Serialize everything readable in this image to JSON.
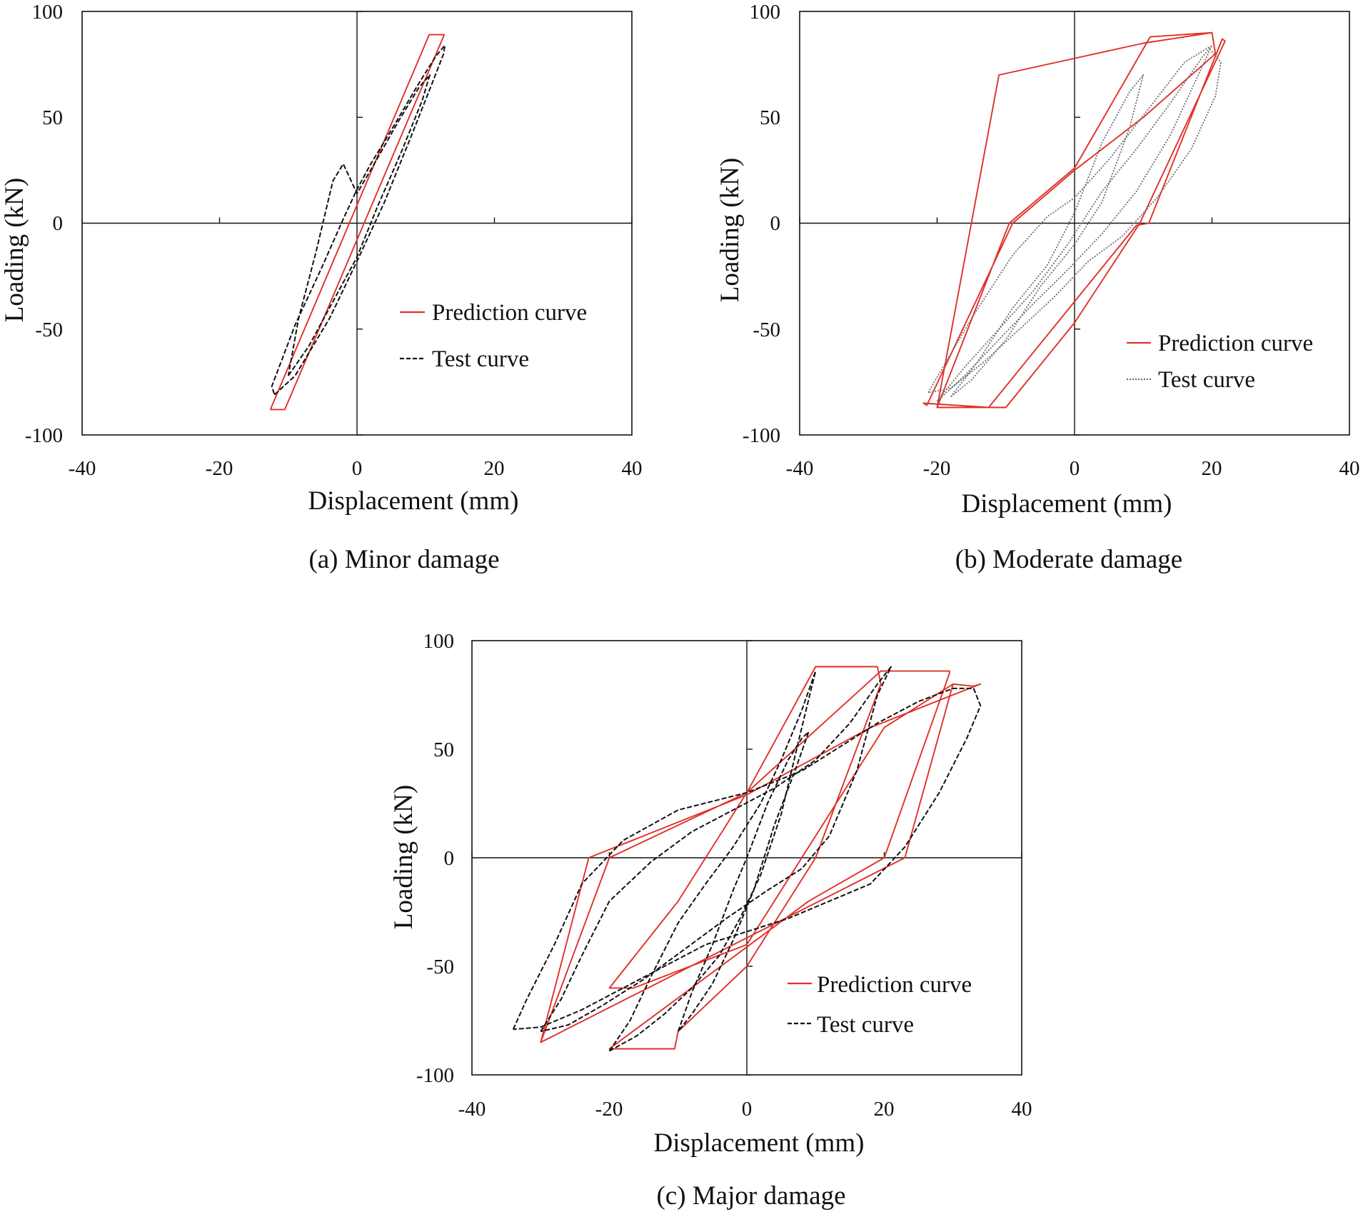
{
  "figure": {
    "colors": {
      "prediction": "#e0302a",
      "test": "#111111",
      "test_grey": "#6e6e6e",
      "axis": "#111111"
    }
  },
  "chart_data": [
    {
      "type": "line",
      "id": "a",
      "caption": "(a) Minor damage",
      "xlabel": "Displacement (mm)",
      "ylabel": "Loading (kN)",
      "xlim": [
        -40,
        40
      ],
      "ylim": [
        -100,
        100
      ],
      "xticks": [
        "-40",
        "-20",
        "0",
        "20",
        "40"
      ],
      "yticks": [
        "100",
        "50",
        "0",
        "-50",
        "-100"
      ],
      "legend": {
        "placement": "lower-right",
        "entries": [
          "Prediction curve",
          "Test curve"
        ]
      },
      "series": [
        {
          "name": "Prediction curve",
          "style": "solid-red",
          "x": [
            -12.6,
            -10.5,
            12.7,
            10.5,
            -12.6
          ],
          "y": [
            -88,
            -88,
            89,
            89,
            -88
          ]
        },
        {
          "name": "Test curve",
          "style": "dashed-black",
          "x": [
            -12.0,
            -9.0,
            -4.0,
            0.0,
            4.0,
            8.0,
            10.8,
            12.6,
            12.8,
            11.5,
            9.0,
            5.0,
            2.0,
            0.0,
            -2.0,
            -5.0,
            -9.0,
            -12.4,
            -12.0
          ],
          "y": [
            -81,
            -72,
            -45,
            -18,
            10,
            42,
            65,
            80,
            84,
            79,
            66,
            44,
            28,
            16,
            2,
            -20,
            -48,
            -77,
            -81
          ]
        },
        {
          "name": "Test curve (inner loop)",
          "style": "dashed-black",
          "x": [
            -10.0,
            -7.0,
            -3.0,
            0.0,
            3.0,
            6.5,
            9.5,
            10.6,
            9.0,
            6.0,
            2.5,
            0.0,
            -2.0,
            -3.5,
            -6.0,
            -8.5,
            -10.0
          ],
          "y": [
            -72,
            -58,
            -34,
            -16,
            8,
            34,
            58,
            70,
            64,
            48,
            28,
            14,
            28,
            20,
            -14,
            -45,
            -72
          ]
        }
      ]
    },
    {
      "type": "line",
      "id": "b",
      "caption": "(b) Moderate damage",
      "xlabel": "Displacement (mm)",
      "ylabel": "Loading (kN)",
      "xlim": [
        -40,
        40
      ],
      "ylim": [
        -100,
        100
      ],
      "xticks": [
        "-40",
        "-20",
        "0",
        "20",
        "40"
      ],
      "yticks": [
        "100",
        "50",
        "0",
        "-50",
        "-100"
      ],
      "legend": {
        "placement": "lower-right",
        "entries": [
          "Prediction curve",
          "Test curve"
        ]
      },
      "series": [
        {
          "name": "Prediction curve",
          "style": "solid-red",
          "x": [
            -20.0,
            -9.5,
            0.0,
            11.0,
            20.0,
            10.0,
            -11.0,
            -20.0,
            -10.0,
            0.0,
            9.5,
            21.9,
            21.5,
            10.8,
            9.0,
            -12.5,
            -22.0,
            -21.5,
            -9.0,
            0.0,
            10.0,
            20.5,
            20.0
          ],
          "y": [
            -87,
            0,
            26,
            88,
            90,
            85,
            70,
            -87,
            -87,
            -47,
            0,
            86,
            87,
            0,
            -1,
            -87,
            -85,
            -86,
            0,
            25,
            50,
            80,
            90
          ]
        },
        {
          "name": "Test curve (outer)",
          "style": "dotted-grey",
          "x": [
            -21.3,
            -19.5,
            -15.0,
            -9.0,
            -4.0,
            0.0,
            5.0,
            11.0,
            16.0,
            19.5,
            21.3,
            20.5,
            17.0,
            12.0,
            7.0,
            2.0,
            -3.0,
            -8.0,
            -13.0,
            -18.0,
            -21.3
          ],
          "y": [
            -80,
            -70,
            -45,
            -15,
            3,
            12,
            30,
            55,
            76,
            83,
            76,
            60,
            35,
            12,
            -6,
            -18,
            -35,
            -50,
            -65,
            -78,
            -80
          ]
        },
        {
          "name": "Test curve (inner)",
          "style": "dotted-grey",
          "x": [
            -18.0,
            -14.0,
            -9.0,
            -4.0,
            0.0,
            4.0,
            8.0,
            10.0,
            8.0,
            4.0,
            0.0,
            -5.0,
            -10.0,
            -15.0,
            -18.0
          ],
          "y": [
            -82,
            -65,
            -40,
            -20,
            5,
            38,
            62,
            70,
            45,
            10,
            -10,
            -30,
            -55,
            -74,
            -82
          ]
        },
        {
          "name": "Test curve (mid)",
          "style": "dotted-grey",
          "x": [
            -20.0,
            -16.0,
            -11.0,
            -6.0,
            -1.0,
            4.0,
            9.0,
            14.0,
            18.5,
            20.0,
            18.0,
            14.0,
            9.0,
            4.0,
            -1.0,
            -6.0,
            -11.0,
            -16.0,
            -20.0
          ],
          "y": [
            -84,
            -68,
            -50,
            -32,
            -10,
            15,
            35,
            57,
            78,
            84,
            70,
            42,
            15,
            -5,
            -22,
            -38,
            -55,
            -72,
            -84
          ]
        }
      ]
    },
    {
      "type": "line",
      "id": "c",
      "caption": "(c) Major damage",
      "xlabel": "Displacement (mm)",
      "ylabel": "Loading (kN)",
      "xlim": [
        -40,
        40
      ],
      "ylim": [
        -100,
        100
      ],
      "xticks": [
        "-40",
        "-20",
        "0",
        "20",
        "40"
      ],
      "yticks": [
        "100",
        "50",
        "0",
        "-50",
        "-100"
      ],
      "legend": {
        "placement": "lower-right",
        "entries": [
          "Prediction curve",
          "Test curve"
        ]
      },
      "series": [
        {
          "name": "Prediction curve",
          "style": "solid-red",
          "x": [
            -30.0,
            -23.0,
            0.0,
            18.0,
            34.0,
            33.0,
            30.0,
            23.0,
            -30.0,
            -30.0,
            -20.0,
            0.0,
            19.5,
            29.5,
            29.5,
            20.0,
            9.0,
            -20.0,
            -20.0,
            -10.5,
            -10.0,
            0.0,
            10.0,
            19.5,
            19.0,
            10.0,
            0.0,
            -10.0,
            -20.0,
            -16.5,
            0.0,
            20.0,
            30.0
          ],
          "y": [
            -85,
            0,
            29,
            60,
            80,
            79,
            80,
            0,
            -85,
            -85,
            0,
            30,
            86,
            86,
            85,
            0,
            -20,
            -88,
            -88,
            -88,
            -80,
            -50,
            0,
            80,
            88,
            88,
            30,
            -20,
            -60,
            -60,
            -40,
            60,
            80
          ]
        },
        {
          "name": "Test curve (outer)",
          "style": "dashed-black",
          "x": [
            -34.0,
            -32.0,
            -28.0,
            -24.0,
            -18.0,
            -10.0,
            0.0,
            8.0,
            14.0,
            19.0,
            25.0,
            30.0,
            33.0,
            34.0,
            32.0,
            28.0,
            23.0,
            18.0,
            12.0,
            6.0,
            0.0,
            -6.0,
            -12.0,
            -18.0,
            -24.0,
            -30.0,
            -34.0
          ],
          "y": [
            -79,
            -65,
            -40,
            -12,
            8,
            22,
            30,
            40,
            52,
            62,
            72,
            78,
            78,
            70,
            55,
            30,
            5,
            -12,
            -20,
            -28,
            -34,
            -40,
            -50,
            -60,
            -70,
            -78,
            -79
          ]
        },
        {
          "name": "Test curve (mid)",
          "style": "dashed-black",
          "x": [
            -30.0,
            -27.0,
            -24.0,
            -20.0,
            -14.0,
            -8.0,
            -2.0,
            4.0,
            10.0,
            15.0,
            19.0,
            21.0,
            19.0,
            16.0,
            12.0,
            8.0,
            3.0,
            -3.0,
            -9.0,
            -15.0,
            -21.0,
            -26.0,
            -30.0
          ],
          "y": [
            -80,
            -65,
            -45,
            -20,
            -2,
            12,
            22,
            32,
            45,
            62,
            80,
            88,
            75,
            40,
            10,
            -5,
            -15,
            -28,
            -42,
            -56,
            -68,
            -77,
            -80
          ]
        },
        {
          "name": "Test curve (inner)",
          "style": "dashed-black",
          "x": [
            -20.0,
            -17.0,
            -14.0,
            -10.0,
            -6.0,
            -2.0,
            2.0,
            5.0,
            8.0,
            10.0,
            8.0,
            5.0,
            2.0,
            -1.0,
            -4.0,
            -8.0,
            -12.0,
            -16.0,
            -20.0
          ],
          "y": [
            -89,
            -75,
            -55,
            -30,
            -12,
            5,
            25,
            45,
            68,
            86,
            60,
            20,
            -8,
            -28,
            -45,
            -60,
            -72,
            -82,
            -89
          ]
        },
        {
          "name": "Test curve (loop 4)",
          "style": "dashed-black",
          "x": [
            -10.0,
            -8.0,
            -5.0,
            -2.0,
            0.0,
            3.0,
            6.0,
            8.0,
            9.0,
            7.0,
            4.0,
            1.0,
            -2.0,
            -5.0,
            -8.0,
            -10.0
          ],
          "y": [
            -80,
            -62,
            -40,
            -15,
            0,
            25,
            45,
            55,
            58,
            40,
            15,
            -15,
            -38,
            -58,
            -72,
            -80
          ]
        }
      ]
    }
  ]
}
